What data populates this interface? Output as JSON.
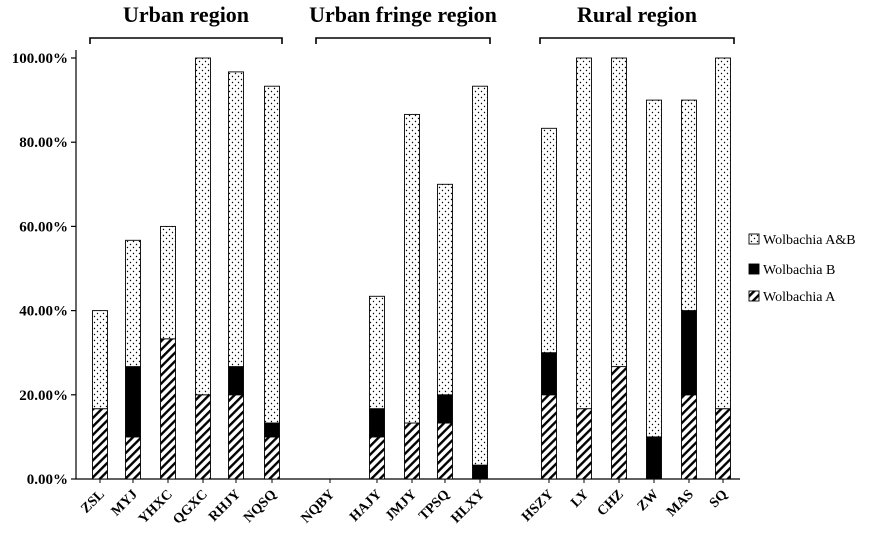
{
  "chart_data": {
    "type": "bar",
    "stacked": true,
    "title": "",
    "xlabel": "",
    "ylabel": "",
    "ylim": [
      0,
      100
    ],
    "yticks": [
      "0.00%",
      "20.00%",
      "40.00%",
      "60.00%",
      "80.00%",
      "100.00%"
    ],
    "groups": [
      {
        "label": "Urban region",
        "categories": [
          "ZSL",
          "MYJ",
          "YHXC",
          "QGXC",
          "RHJY",
          "NQSQ"
        ]
      },
      {
        "label": "Urban fringe region",
        "categories": [
          "NQBY",
          "HAJY",
          "JMJY",
          "TPSQ",
          "HLXY"
        ]
      },
      {
        "label": "Rural region",
        "categories": [
          "HSZY",
          "LY",
          "CHZ",
          "ZW",
          "MAS",
          "SQ"
        ]
      }
    ],
    "categories": [
      "ZSL",
      "MYJ",
      "YHXC",
      "QGXC",
      "RHJY",
      "NQSQ",
      "NQBY",
      "HAJY",
      "JMJY",
      "TPSQ",
      "HLXY",
      "HSZY",
      "LY",
      "CHZ",
      "ZW",
      "MAS",
      "SQ"
    ],
    "series": [
      {
        "name": "Wolbachia A",
        "pattern": "diagonal-hatch",
        "values": [
          16.7,
          10,
          33.3,
          20,
          20,
          10,
          0,
          10,
          13.3,
          13.3,
          0,
          20,
          16.7,
          26.7,
          0,
          20,
          16.7
        ]
      },
      {
        "name": "Wolbachia B",
        "pattern": "solid-black",
        "values": [
          0,
          16.7,
          0,
          0,
          6.7,
          3.3,
          0,
          6.7,
          0,
          6.7,
          3.3,
          10,
          0,
          0,
          10,
          20,
          0
        ]
      },
      {
        "name": "Wolbachia A&B",
        "pattern": "dotted",
        "values": [
          23.3,
          30,
          26.7,
          80,
          70,
          80,
          0,
          26.7,
          73.3,
          50,
          90,
          53.3,
          83.3,
          73.3,
          80,
          50,
          83.3
        ]
      }
    ],
    "legend": {
      "placement": "right",
      "entries": [
        "Wolbachia A&B",
        "Wolbachia B",
        "Wolbachia A"
      ]
    },
    "grid": false,
    "colors": {
      "bar_outline": "#000000",
      "solid": "#000000",
      "background": "#ffffff"
    }
  }
}
